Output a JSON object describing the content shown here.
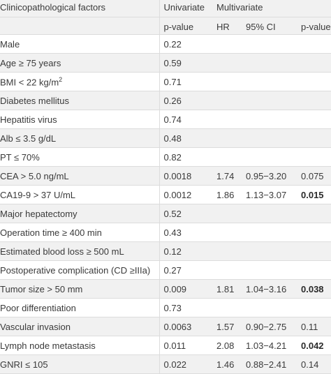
{
  "header": {
    "factor_col": "Clinicopathological factors",
    "univariate": "Univariate",
    "multivariate": "Multivariate",
    "pvalue": "p-value",
    "hr": "HR",
    "ci": "95% CI",
    "pvalue2": "p-value"
  },
  "rows": [
    {
      "factor": "Male",
      "uni_p": "0.22",
      "hr": "",
      "ci": "",
      "multi_p": "",
      "bold": false
    },
    {
      "factor": "Age ≥ 75 years",
      "uni_p": "0.59",
      "hr": "",
      "ci": "",
      "multi_p": "",
      "bold": false
    },
    {
      "factor": "BMI < 22 kg/m",
      "sup": "2",
      "uni_p": "0.71",
      "hr": "",
      "ci": "",
      "multi_p": "",
      "bold": false
    },
    {
      "factor": "Diabetes mellitus",
      "uni_p": "0.26",
      "hr": "",
      "ci": "",
      "multi_p": "",
      "bold": false
    },
    {
      "factor": "Hepatitis virus",
      "uni_p": "0.74",
      "hr": "",
      "ci": "",
      "multi_p": "",
      "bold": false
    },
    {
      "factor": "Alb ≤ 3.5 g/dL",
      "uni_p": "0.48",
      "hr": "",
      "ci": "",
      "multi_p": "",
      "bold": false
    },
    {
      "factor": "PT ≤ 70%",
      "uni_p": "0.82",
      "hr": "",
      "ci": "",
      "multi_p": "",
      "bold": false
    },
    {
      "factor": "CEA > 5.0 ng/mL",
      "uni_p": "0.0018",
      "hr": "1.74",
      "ci": "0.95−3.20",
      "multi_p": "0.075",
      "bold": false
    },
    {
      "factor": "CA19-9 > 37 U/mL",
      "uni_p": "0.0012",
      "hr": "1.86",
      "ci": "1.13−3.07",
      "multi_p": "0.015",
      "bold": true
    },
    {
      "factor": "Major hepatectomy",
      "uni_p": "0.52",
      "hr": "",
      "ci": "",
      "multi_p": "",
      "bold": false
    },
    {
      "factor": "Operation time ≥ 400 min",
      "uni_p": "0.43",
      "hr": "",
      "ci": "",
      "multi_p": "",
      "bold": false
    },
    {
      "factor": "Estimated blood loss ≥ 500 mL",
      "uni_p": "0.12",
      "hr": "",
      "ci": "",
      "multi_p": "",
      "bold": false
    },
    {
      "factor": "Postoperative complication (CD ≥IIIa)",
      "uni_p": "0.27",
      "hr": "",
      "ci": "",
      "multi_p": "",
      "bold": false
    },
    {
      "factor": "Tumor size > 50 mm",
      "uni_p": "0.009",
      "hr": "1.81",
      "ci": "1.04−3.16",
      "multi_p": "0.038",
      "bold": true
    },
    {
      "factor": "Poor differentiation",
      "uni_p": "0.73",
      "hr": "",
      "ci": "",
      "multi_p": "",
      "bold": false
    },
    {
      "factor": "Vascular invasion",
      "uni_p": "0.0063",
      "hr": "1.57",
      "ci": "0.90−2.75",
      "multi_p": "0.11",
      "bold": false
    },
    {
      "factor": "Lymph node metastasis",
      "uni_p": "0.011",
      "hr": "2.08",
      "ci": "1.03−4.21",
      "multi_p": "0.042",
      "bold": true
    },
    {
      "factor": "GNRI ≤ 105",
      "uni_p": "0.022",
      "hr": "1.46",
      "ci": "0.88−2.41",
      "multi_p": "0.14",
      "bold": false
    }
  ]
}
